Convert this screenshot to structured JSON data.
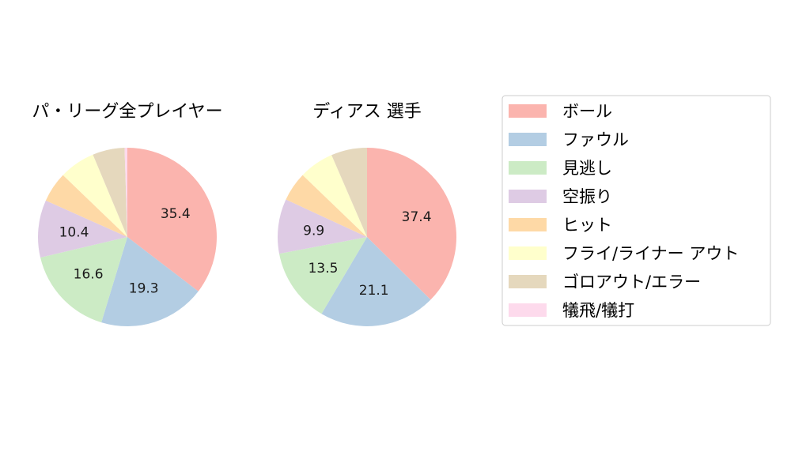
{
  "chart_data": [
    {
      "type": "pie",
      "title": "パ・リーグ全プレイヤー",
      "categories": [
        "ボール",
        "ファウル",
        "見逃し",
        "空振り",
        "ヒット",
        "フライ/ライナー アウト",
        "ゴロアウト/エラー",
        "犠飛/犠打"
      ],
      "values": [
        35.4,
        19.3,
        16.6,
        10.4,
        5.5,
        6.5,
        5.8,
        0.5
      ],
      "labels": [
        "35.4",
        "19.3",
        "16.6",
        "10.4",
        "",
        "",
        "",
        ""
      ],
      "start_angle": "top",
      "direction": "clockwise"
    },
    {
      "type": "pie",
      "title": "ディアス  選手",
      "categories": [
        "ボール",
        "ファウル",
        "見逃し",
        "空振り",
        "ヒット",
        "フライ/ライナー アウト",
        "ゴロアウト/エラー",
        "犠飛/犠打"
      ],
      "values": [
        37.4,
        21.1,
        13.5,
        9.9,
        5.3,
        6.3,
        6.5,
        0.0
      ],
      "labels": [
        "37.4",
        "21.1",
        "13.5",
        "9.9",
        "",
        "",
        "",
        ""
      ],
      "start_angle": "top",
      "direction": "clockwise"
    }
  ],
  "legend": {
    "placement": "right",
    "entries": [
      "ボール",
      "ファウル",
      "見逃し",
      "空振り",
      "ヒット",
      "フライ/ライナー アウト",
      "ゴロアウト/エラー",
      "犠飛/犠打"
    ]
  },
  "colors": [
    "#fbb4ae",
    "#b3cde3",
    "#ccebc5",
    "#decbe4",
    "#fed9a6",
    "#ffffcc",
    "#e5d8bd",
    "#fddaec"
  ]
}
